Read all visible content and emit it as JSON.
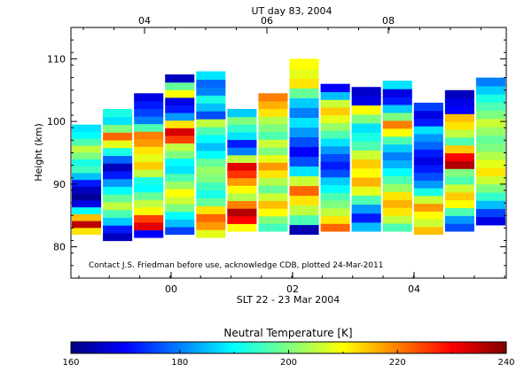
{
  "chart_data": {
    "type": "heatmap",
    "title": "UT day 83, 2004",
    "xlabel": "SLT 22 - 23 Mar 2004",
    "ylabel": "Height (km)",
    "annotation": "Contact J.S. Friedman before use, acknowledge CDB, plotted 24-Mar-2011",
    "top_axis_ticks": [
      "04",
      "06",
      "08"
    ],
    "bottom_axis_ticks": [
      "00",
      "02",
      "04"
    ],
    "y_ticks": [
      80,
      90,
      100,
      110
    ],
    "ylim": [
      75,
      115
    ],
    "colorbar": {
      "label": "Neutral Temperature [K]",
      "ticks": [
        160,
        180,
        200,
        220,
        240
      ],
      "range": [
        160,
        240
      ],
      "colors": [
        "#00007f",
        "#0000ff",
        "#007fff",
        "#00ffff",
        "#7fff7f",
        "#ffff00",
        "#ff7f00",
        "#ff0000",
        "#7f0000"
      ]
    },
    "units": "K",
    "columns": [
      {
        "bottom": 82,
        "top": 99.5,
        "profile": [
          212,
          235,
          215,
          190,
          168,
          162,
          165,
          172,
          185,
          195,
          192,
          200,
          205,
          196,
          190,
          188
        ]
      },
      {
        "bottom": 81,
        "top": 102,
        "profile": [
          165,
          172,
          186,
          196,
          205,
          198,
          190,
          182,
          172,
          165,
          178,
          192,
          208,
          222,
          200,
          188,
          192
        ]
      },
      {
        "bottom": 81.5,
        "top": 104.5,
        "profile": [
          170,
          232,
          225,
          210,
          205,
          198,
          190,
          192,
          205,
          214,
          208,
          212,
          218,
          220,
          196,
          180,
          175,
          172,
          168
        ]
      },
      {
        "bottom": 82,
        "top": 107.5,
        "profile": [
          175,
          185,
          190,
          200,
          206,
          210,
          202,
          196,
          188,
          190,
          200,
          205,
          225,
          233,
          212,
          182,
          172,
          168,
          210,
          198,
          165
        ]
      },
      {
        "bottom": 81.5,
        "top": 108,
        "profile": [
          208,
          218,
          222,
          212,
          198,
          192,
          195,
          200,
          202,
          198,
          190,
          185,
          190,
          196,
          205,
          176,
          185,
          192,
          180,
          178,
          188
        ]
      },
      {
        "bottom": 82.5,
        "top": 102,
        "profile": [
          210,
          230,
          236,
          220,
          204,
          210,
          218,
          226,
          232,
          205,
          180,
          172,
          188,
          194,
          200,
          186
        ]
      },
      {
        "bottom": 82.5,
        "top": 104.5,
        "profile": [
          195,
          200,
          210,
          215,
          206,
          198,
          204,
          212,
          218,
          208,
          200,
          206,
          196,
          200,
          204,
          212,
          216,
          220
        ]
      },
      {
        "bottom": 82,
        "top": 110,
        "profile": [
          164,
          196,
          205,
          212,
          222,
          206,
          188,
          176,
          170,
          176,
          182,
          188,
          180,
          186,
          198,
          212,
          208,
          210
        ]
      },
      {
        "bottom": 82.5,
        "top": 106,
        "profile": [
          222,
          212,
          205,
          200,
          196,
          190,
          186,
          176,
          172,
          176,
          182,
          188,
          196,
          202,
          208,
          214,
          206,
          185,
          170
        ]
      },
      {
        "bottom": 82.5,
        "top": 105.5,
        "profile": [
          185,
          172,
          182,
          196,
          208,
          216,
          210,
          214,
          206,
          196,
          192,
          188,
          200,
          210,
          168,
          166
        ]
      },
      {
        "bottom": 82.5,
        "top": 106.5,
        "profile": [
          196,
          205,
          212,
          216,
          212,
          202,
          196,
          190,
          184,
          180,
          186,
          196,
          210,
          220,
          200,
          186,
          172,
          168,
          188
        ]
      },
      {
        "bottom": 82,
        "top": 103,
        "profile": [
          215,
          206,
          210,
          218,
          206,
          192,
          182,
          176,
          172,
          168,
          172,
          178,
          182,
          188,
          172,
          168,
          175
        ]
      },
      {
        "bottom": 82.5,
        "top": 105,
        "profile": [
          176,
          182,
          196,
          210,
          214,
          206,
          196,
          200,
          236,
          230,
          214,
          196,
          205,
          212,
          215,
          170,
          168,
          165
        ]
      },
      {
        "bottom": 83.5,
        "top": 107,
        "profile": [
          168,
          175,
          185,
          194,
          200,
          206,
          212,
          208,
          204,
          200,
          198,
          202,
          206,
          200,
          196,
          192,
          186,
          180
        ]
      }
    ]
  }
}
